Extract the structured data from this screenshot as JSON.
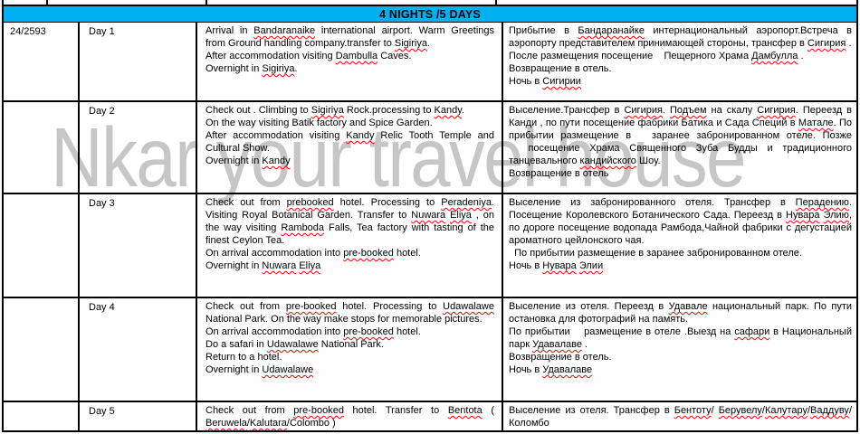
{
  "banner": {
    "title": "4 NIGHTS /5 DAYS"
  },
  "watermark": {
    "text": "Nkar your travel house"
  },
  "tour": {
    "code": "24/2593"
  },
  "colors": {
    "banner_bg": "#00B0F0",
    "squiggle": "#FF0000",
    "watermark": "#C6C6C6",
    "border": "#000000"
  },
  "itinerary": [
    {
      "day": "Day 1",
      "en": [
        [
          [
            "Arrival in ",
            0
          ],
          [
            "Bandaranaike",
            1
          ],
          [
            " international airport. Warm Greetings from Ground handling company.transfer to ",
            0
          ],
          [
            "Sigiriya",
            1
          ],
          [
            ".",
            0
          ]
        ],
        [
          [
            "After accommodation visiting ",
            0
          ],
          [
            "Dambulla",
            1
          ],
          [
            " Caves.",
            0
          ]
        ],
        [
          [
            "Overnight in ",
            0
          ],
          [
            "Sigiriya",
            1
          ],
          [
            ".",
            0
          ]
        ]
      ],
      "ru": [
        [
          [
            "Прибытие в ",
            0
          ],
          [
            "Бандаранайке",
            1
          ],
          [
            " интернациональный аэропорт.Встреча в аэропорту представителем принимающей стороны, трансфер в ",
            0
          ],
          [
            "Сигирия",
            1
          ],
          [
            " .",
            0
          ]
        ],
        [
          [
            "После размещения посещение    Пещерного Храма ",
            0
          ],
          [
            "Дамбулла",
            1
          ],
          [
            " .",
            0
          ]
        ],
        [
          [
            "Возвращение в отель.",
            0
          ]
        ],
        [
          [
            "Ночь в ",
            0
          ],
          [
            "Сигирии",
            1
          ]
        ]
      ]
    },
    {
      "day": "Day 2",
      "en": [
        [
          [
            "Check out . Climbing to ",
            0
          ],
          [
            "Sigiriya",
            1
          ],
          [
            " Rock.processing to ",
            0
          ],
          [
            "Kandy",
            1
          ],
          [
            ".",
            0
          ]
        ],
        [
          [
            "On the way visiting Batik factory and Spice Garden.",
            0
          ]
        ],
        [
          [
            "After accommodation visiting ",
            0
          ],
          [
            "Kandy",
            1
          ],
          [
            " Relic Tooth Temple and Cultural Show.",
            0
          ]
        ],
        [
          [
            "Overnight in ",
            0
          ],
          [
            "Kandy",
            1
          ]
        ]
      ],
      "ru": [
        [
          [
            "Выселение.Трансфер в ",
            0
          ],
          [
            "Сигирия",
            1
          ],
          [
            ". ",
            0
          ],
          [
            "Подъем",
            1
          ],
          [
            " на скалу ",
            0
          ],
          [
            "Сигирия",
            1
          ],
          [
            ". Переезд в Канди , по пути посещение фабрики Батика и Сада Специй в ",
            0
          ],
          [
            "Матале",
            1
          ],
          [
            ". По прибытии размещение в   заранее забронированном отеле. Позже   посещение Храма Священного Зуба Будды и традиционного танцевального ",
            0
          ],
          [
            "кандийского",
            1
          ],
          [
            " Шоу.",
            0
          ]
        ],
        [
          [
            "Возвращение в отель",
            0
          ]
        ]
      ]
    },
    {
      "day": "Day 3",
      "en": [
        [
          [
            "Check out from ",
            0
          ],
          [
            "prebooked",
            1
          ],
          [
            " hotel. Processing to ",
            0
          ],
          [
            "Peradeniya",
            1
          ],
          [
            ". Visiting Royal Botanical Garden. Transfer to ",
            0
          ],
          [
            "Nuwara",
            1
          ],
          [
            " ",
            0
          ],
          [
            "Eliya",
            1
          ],
          [
            " , on the way visiting ",
            0
          ],
          [
            "Ramboda",
            1
          ],
          [
            " Falls, Tea factory with tasting of the finest Ceylon Tea.",
            0
          ]
        ],
        [
          [
            "On arrival accommodation into ",
            0
          ],
          [
            "pre-booked",
            1
          ],
          [
            " hotel.",
            0
          ]
        ],
        [
          [
            "Overnight in ",
            0
          ],
          [
            "Nuwara",
            1
          ],
          [
            " ",
            0
          ],
          [
            "Eliya",
            1
          ]
        ]
      ],
      "ru": [
        [
          [
            "Выселение из забронированного отеля. Трансфер в ",
            0
          ],
          [
            "Перадению",
            1
          ],
          [
            ". Посещение Королевского Ботанического Сада. Переезд в ",
            0
          ],
          [
            "Нувара",
            1
          ],
          [
            " ",
            0
          ],
          [
            "Элию",
            1
          ],
          [
            ", по дороге посещение водопада Рамбода,Чайной фабрики с дегустацией ароматного цейлонского чая.",
            0
          ]
        ],
        [
          [
            "  По прибытии размещение в заранее забронированном отеле.",
            0
          ]
        ],
        [
          [
            "Ночь в ",
            0
          ],
          [
            "Нувара",
            1
          ],
          [
            " ",
            0
          ],
          [
            "Элии",
            1
          ]
        ]
      ]
    },
    {
      "day": "Day 4",
      "en": [
        [
          [
            "Check out from ",
            0
          ],
          [
            "pre-booked",
            1
          ],
          [
            " hotel. Processing to ",
            0
          ],
          [
            "Udawalawe",
            1
          ],
          [
            " National Park. On the way make stops for memorable pictures.",
            0
          ]
        ],
        [
          [
            "On arrival accommodation into ",
            0
          ],
          [
            "pre-booked",
            1
          ],
          [
            " hotel.",
            0
          ]
        ],
        [
          [
            "Do a safari in ",
            0
          ],
          [
            "Udawalawe",
            1
          ],
          [
            " National Park.",
            0
          ]
        ],
        [
          [
            "Return to a hotel.",
            0
          ]
        ],
        [
          [
            "Overnight in ",
            0
          ],
          [
            "Udawalawe",
            1
          ]
        ]
      ],
      "ru": [
        [
          [
            "Выселение из отеля. Переезд в ",
            0
          ],
          [
            "Удавале",
            1
          ],
          [
            " национальный парк. По пути остановка для фотографий на память.",
            0
          ]
        ],
        [
          [
            "По прибытии    размещение в отеле .Выезд на ",
            0
          ],
          [
            "сафари",
            1
          ],
          [
            " в Национальный парк ",
            0
          ],
          [
            "Удавалаве",
            1
          ],
          [
            " .",
            0
          ]
        ],
        [
          [
            "Возвращение в отель.",
            0
          ]
        ],
        [
          [
            "Ночь в ",
            0
          ],
          [
            "Удавалаве",
            1
          ]
        ]
      ]
    },
    {
      "day": "Day 5",
      "en": [
        [
          [
            "Check out from ",
            0
          ],
          [
            "pre-booked",
            1
          ],
          [
            " hotel. Transfer to ",
            0
          ],
          [
            "Bentota",
            1
          ],
          [
            " ( ",
            0
          ],
          [
            "Beruwela",
            1
          ],
          [
            "/",
            0
          ],
          [
            "Kalutara",
            1
          ],
          [
            "/Colombo )",
            0
          ]
        ]
      ],
      "ru": [
        [
          [
            "Выселение из отеля. Трансфер в ",
            0
          ],
          [
            "Бентоту",
            1
          ],
          [
            "/ ",
            0
          ],
          [
            "Берувелу",
            1
          ],
          [
            "/",
            0
          ],
          [
            "Калутару",
            1
          ],
          [
            "/",
            0
          ],
          [
            "Ваддуву",
            1
          ],
          [
            "/Коломбо",
            0
          ]
        ]
      ]
    }
  ]
}
